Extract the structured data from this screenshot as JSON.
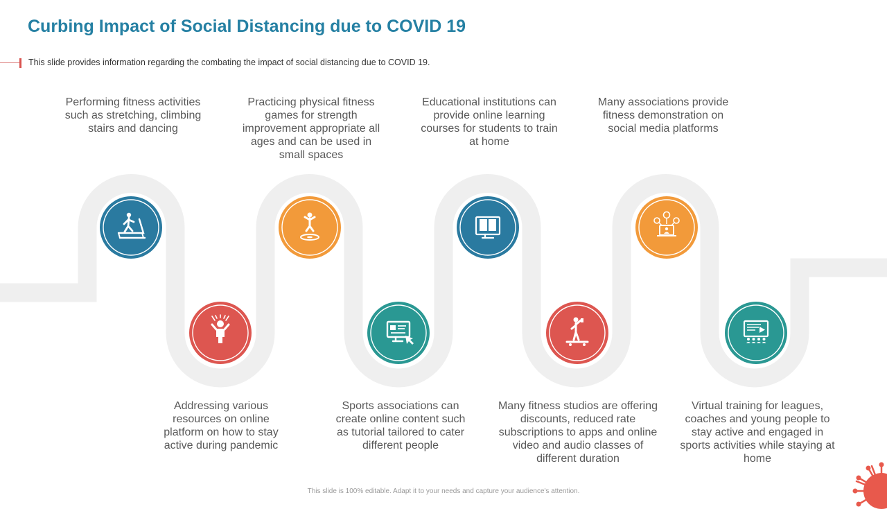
{
  "header": {
    "title": "Curbing Impact of Social Distancing due to COVID 19",
    "subtitle": "This slide provides  information  regarding  the combating the impact of social distancing due to COVID  19."
  },
  "colors": {
    "title": "#2580a3",
    "blue": "#2a7aa0",
    "orange": "#f29a3a",
    "red": "#dd5650",
    "teal": "#2a9893",
    "path": "#efefef"
  },
  "steps": [
    {
      "text": "Performing fitness activities such as stretching, climbing stairs and dancing",
      "color": "blue",
      "icon": "treadmill-icon"
    },
    {
      "text": "Addressing various resources on online platform on how to stay active during pandemic",
      "color": "red",
      "icon": "child-cheering-icon"
    },
    {
      "text": "Practicing physical fitness games for strength improvement appropriate all ages and can be used in small spaces",
      "color": "orange",
      "icon": "trampoline-jump-icon"
    },
    {
      "text": "Sports associations can create online content such as tutorial tailored to cater different people",
      "color": "teal",
      "icon": "online-tutorial-icon"
    },
    {
      "text": "Educational institutions can provide online learning courses for students to train at home",
      "color": "blue",
      "icon": "online-book-icon"
    },
    {
      "text": "Many fitness studios are offering discounts, reduced rate subscriptions to apps and online video and audio classes of different duration",
      "color": "red",
      "icon": "skateboard-icon"
    },
    {
      "text": "Many associations provide fitness demonstration on social media platforms",
      "color": "orange",
      "icon": "social-network-icon"
    },
    {
      "text": "Virtual training for leagues, coaches and young people to stay active and engaged in sports activities while staying at home",
      "color": "teal",
      "icon": "virtual-training-icon"
    }
  ],
  "footer": "This slide is 100% editable. Adapt it to your needs and capture your audience's attention.",
  "decoration": {
    "corner": "virus-icon"
  }
}
